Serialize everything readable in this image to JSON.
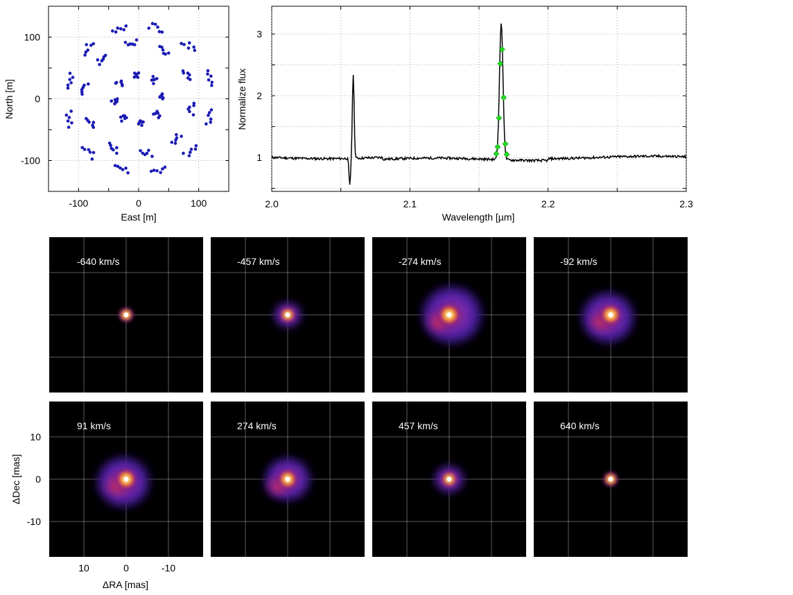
{
  "chart_data": [
    {
      "type": "scatter",
      "xlabel": "East [m]",
      "ylabel": "North [m]",
      "xlim": [
        -150,
        150
      ],
      "ylim": [
        -150,
        150
      ],
      "xticks": [
        "-100",
        "0",
        "100"
      ],
      "yticks": [
        "-100",
        "0",
        "100"
      ],
      "grid": true,
      "marker_color": "#1a1ab4",
      "rings": [
        {
          "radius": 40,
          "description": "inner ring"
        },
        {
          "radius": 90,
          "description": "middle ring"
        },
        {
          "radius": 120,
          "description": "outer ring"
        }
      ]
    },
    {
      "type": "line",
      "xlabel": "Wavelength [µm]",
      "ylabel": "Normalize flux",
      "xlim": [
        2.0,
        2.3
      ],
      "ylim": [
        0.45,
        3.45
      ],
      "xticks": [
        "2.0",
        "2.1",
        "2.2",
        "2.3"
      ],
      "yticks": [
        "1",
        "2",
        "3"
      ],
      "grid": true,
      "line_color": "#000000",
      "continuum": 1.0,
      "features": [
        {
          "wavelength": 2.059,
          "peak": 2.37,
          "dip": 0.56
        },
        {
          "wavelength": 2.1661,
          "peak": 3.22
        }
      ],
      "marked_channels": {
        "color": "#22dd22",
        "x": [
          2.1625,
          2.1635,
          2.1645,
          2.1655,
          2.1667,
          2.1679,
          2.1691,
          2.1701
        ],
        "y": [
          1.06,
          1.17,
          1.64,
          2.52,
          2.75,
          1.97,
          1.22,
          1.05
        ]
      }
    },
    {
      "type": "heatmap",
      "xlabel": "ΔRA [mas]",
      "ylabel": "ΔDec [mas]",
      "xticks": [
        "10",
        "0",
        "-10"
      ],
      "yticks": [
        "10",
        "0",
        "-10"
      ],
      "x_axis_inverted": true,
      "panels": [
        {
          "label": "-640 km/s",
          "extent": 0.0,
          "offset": [
            0,
            0
          ]
        },
        {
          "label": "-457 km/s",
          "extent": 0.1,
          "offset": [
            0,
            0
          ]
        },
        {
          "label": "-274 km/s",
          "extent": 1.0,
          "offset": [
            -1,
            0
          ]
        },
        {
          "label": "-92 km/s",
          "extent": 0.8,
          "offset": [
            1,
            1
          ]
        },
        {
          "label": "91 km/s",
          "extent": 0.8,
          "offset": [
            1,
            1
          ]
        },
        {
          "label": "274 km/s",
          "extent": 0.6,
          "offset": [
            0,
            0
          ]
        },
        {
          "label": "457 km/s",
          "extent": 0.15,
          "offset": [
            0,
            0
          ]
        },
        {
          "label": "640 km/s",
          "extent": 0.0,
          "offset": [
            0,
            0
          ]
        }
      ]
    }
  ]
}
